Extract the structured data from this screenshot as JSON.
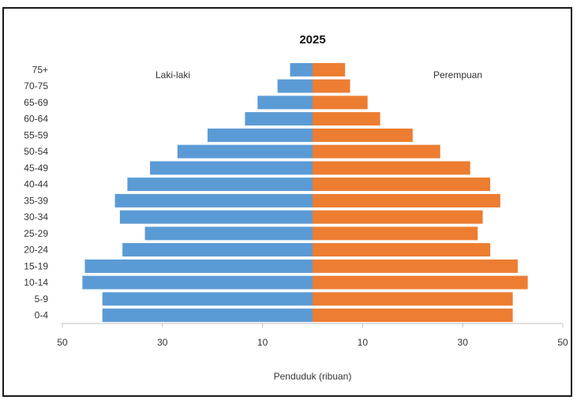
{
  "chart_data": {
    "type": "bar",
    "orientation": "horizontal",
    "title": "2025",
    "xlabel": "Penduduk (ribuan)",
    "ylabel": "",
    "categories": [
      "0-4",
      "5-9",
      "10-14",
      "15-19",
      "20-24",
      "25-29",
      "30-34",
      "35-39",
      "40-44",
      "45-49",
      "50-54",
      "55-59",
      "60-64",
      "65-69",
      "70-75",
      "75+"
    ],
    "series": [
      {
        "name": "Laki-laki",
        "color": "#5b9bd5",
        "values": [
          42,
          42,
          46,
          45.5,
          38,
          33.5,
          38.5,
          39.5,
          37,
          32.5,
          27,
          21,
          13.5,
          11,
          7,
          4.5
        ]
      },
      {
        "name": "Perempuan",
        "color": "#ed7d31",
        "values": [
          40,
          40,
          43,
          41,
          35.5,
          33,
          34,
          37.5,
          35.5,
          31.5,
          25.5,
          20,
          13.5,
          11,
          7.5,
          6.5
        ]
      }
    ],
    "xticks": [
      "50",
      "30",
      "10",
      "10",
      "30",
      "50"
    ],
    "xlim": [
      -50,
      50
    ],
    "grid": false,
    "legend": "inline-top"
  }
}
